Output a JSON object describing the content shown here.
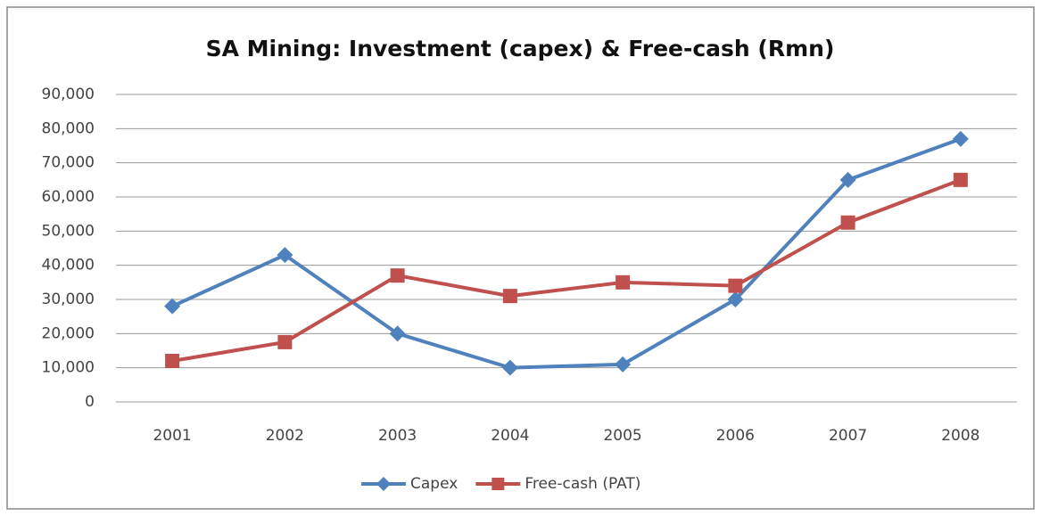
{
  "chart_data": {
    "type": "line",
    "title": "SA Mining: Investment (capex) & Free-cash (Rmn)",
    "categories": [
      "2001",
      "2002",
      "2003",
      "2004",
      "2005",
      "2006",
      "2007",
      "2008"
    ],
    "series": [
      {
        "name": "Capex",
        "color": "#4f81bd",
        "marker": "diamond",
        "values": [
          28000,
          43000,
          20000,
          10000,
          11000,
          30000,
          65000,
          77000
        ]
      },
      {
        "name": "Free-cash (PAT)",
        "color": "#c0504d",
        "marker": "square",
        "values": [
          12000,
          17500,
          37000,
          31000,
          35000,
          34000,
          52500,
          65000
        ]
      }
    ],
    "ylim": [
      0,
      90000
    ],
    "yticks": [
      0,
      {
        "value": 10000,
        "label": "10,000"
      },
      {
        "value": 20000,
        "label": "20,000"
      },
      {
        "value": 30000,
        "label": "30,000"
      },
      {
        "value": 40000,
        "label": "40,000"
      },
      {
        "value": 50000,
        "label": "50,000"
      },
      {
        "value": 60000,
        "label": "60,000"
      },
      {
        "value": 70000,
        "label": "70,000"
      },
      {
        "value": 80000,
        "label": "80,000"
      },
      {
        "value": 90000,
        "label": "90,000"
      }
    ],
    "grid": true,
    "legend": "bottom"
  }
}
